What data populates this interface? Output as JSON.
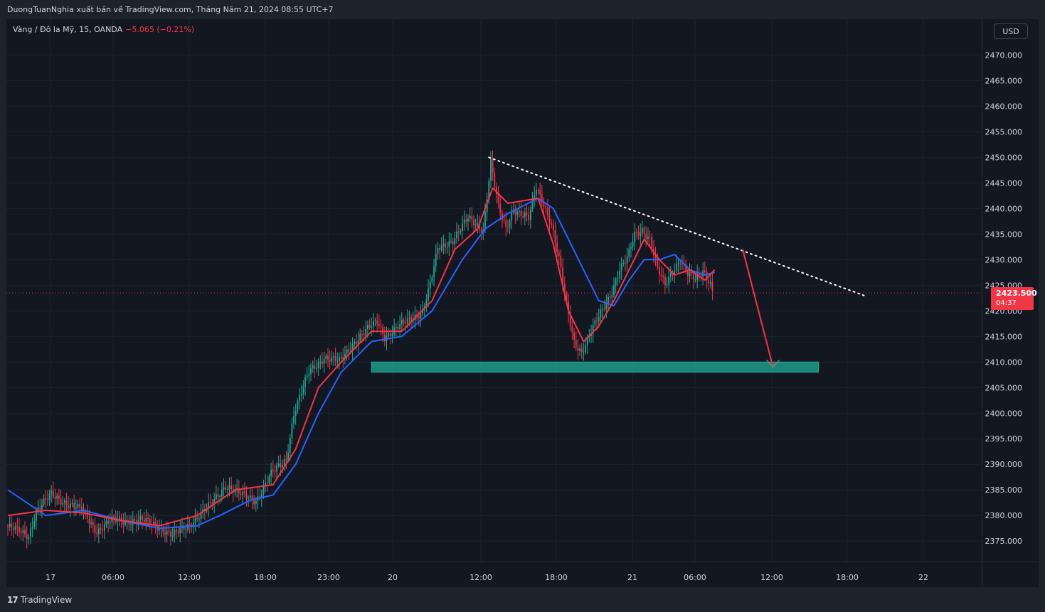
{
  "header": {
    "publish_line": "DuongTuanNghia xuất bản về TradingView.com, Tháng Năm 21, 2024 08:55 UTC+7"
  },
  "symbol": {
    "name": "Vàng / Đô la Mỹ, 15, OANDA",
    "change": "−5.065 (−0.21%)"
  },
  "currency_button": "USD",
  "last_price": {
    "price": "2423.500",
    "countdown": "04:37"
  },
  "footer": {
    "logo_icon": "tradingview-logo-icon",
    "brand": "TradingView"
  },
  "colors": {
    "background": "#131722",
    "grid": "#1f2330",
    "up": "#22ab94",
    "down": "#f23645",
    "ma_fast": "#f23645",
    "ma_slow": "#2962ff",
    "support_zone": "#1e9b87"
  },
  "chart_data": {
    "type": "candlestick",
    "title": "Vàng / Đô la Mỹ, 15, OANDA",
    "x_tick_labels": [
      "17",
      "06:00",
      "12:00",
      "18:00",
      "23:00",
      "20",
      "12:00",
      "18:00",
      "21",
      "06:00",
      "12:00",
      "18:00",
      "22"
    ],
    "y_tick_labels": [
      "2470.000",
      "2465.000",
      "2460.000",
      "2455.000",
      "2450.000",
      "2445.000",
      "2440.000",
      "2435.000",
      "2430.000",
      "2425.000",
      "2420.000",
      "2415.000",
      "2410.000",
      "2405.000",
      "2400.000",
      "2395.000",
      "2390.000",
      "2385.000",
      "2380.000",
      "2375.000"
    ],
    "ylim": [
      2371,
      2477
    ],
    "grid": true,
    "price_path": [
      [
        0,
        2378
      ],
      [
        3,
        2376
      ],
      [
        4,
        2381
      ],
      [
        6,
        2384
      ],
      [
        10,
        2381
      ],
      [
        12,
        2377
      ],
      [
        14,
        2379
      ],
      [
        18,
        2379
      ],
      [
        20,
        2378
      ],
      [
        22,
        2376
      ],
      [
        24,
        2378
      ],
      [
        27,
        2382
      ],
      [
        29,
        2386
      ],
      [
        31,
        2384
      ],
      [
        33,
        2383
      ],
      [
        35,
        2388
      ],
      [
        37,
        2391
      ],
      [
        38,
        2400
      ],
      [
        40,
        2408
      ],
      [
        42,
        2411
      ],
      [
        44,
        2410
      ],
      [
        46,
        2414
      ],
      [
        49,
        2418
      ],
      [
        50,
        2415
      ],
      [
        53,
        2418
      ],
      [
        55,
        2420
      ],
      [
        56,
        2425
      ],
      [
        57,
        2432
      ],
      [
        59,
        2434
      ],
      [
        61,
        2438
      ],
      [
        63,
        2436
      ],
      [
        64,
        2449
      ],
      [
        65,
        2440
      ],
      [
        66,
        2436
      ],
      [
        67,
        2440
      ],
      [
        69,
        2438
      ],
      [
        70,
        2444
      ],
      [
        71,
        2441
      ],
      [
        72,
        2437
      ],
      [
        73,
        2430
      ],
      [
        74,
        2421
      ],
      [
        75,
        2414
      ],
      [
        76,
        2412
      ],
      [
        77,
        2415
      ],
      [
        78,
        2418
      ],
      [
        79,
        2421
      ],
      [
        80,
        2424
      ],
      [
        81,
        2428
      ],
      [
        82,
        2430
      ],
      [
        83,
        2435
      ],
      [
        84,
        2436
      ],
      [
        85,
        2434
      ],
      [
        86,
        2428
      ],
      [
        87,
        2425
      ],
      [
        88,
        2428
      ],
      [
        89,
        2430
      ],
      [
        90,
        2427
      ],
      [
        91,
        2426
      ],
      [
        92,
        2428
      ],
      [
        93,
        2425.5
      ],
      [
        93.3,
        2423.5
      ]
    ],
    "ma_fast": [
      [
        0,
        2380
      ],
      [
        5,
        2381
      ],
      [
        10,
        2380.5
      ],
      [
        15,
        2379
      ],
      [
        20,
        2378
      ],
      [
        25,
        2380
      ],
      [
        30,
        2385
      ],
      [
        35,
        2386
      ],
      [
        38,
        2393
      ],
      [
        41,
        2405
      ],
      [
        44,
        2410
      ],
      [
        48,
        2416
      ],
      [
        52,
        2416
      ],
      [
        56,
        2422
      ],
      [
        59,
        2432
      ],
      [
        62,
        2436
      ],
      [
        64,
        2444
      ],
      [
        66,
        2441
      ],
      [
        70,
        2442
      ],
      [
        72,
        2433
      ],
      [
        74,
        2420
      ],
      [
        76,
        2414
      ],
      [
        78,
        2417
      ],
      [
        80,
        2422
      ],
      [
        82,
        2428
      ],
      [
        84,
        2434
      ],
      [
        86,
        2430
      ],
      [
        88,
        2427
      ],
      [
        90,
        2428
      ],
      [
        92,
        2426
      ],
      [
        93.3,
        2428
      ]
    ],
    "ma_slow": [
      [
        0,
        2385
      ],
      [
        5,
        2380
      ],
      [
        10,
        2381
      ],
      [
        15,
        2379
      ],
      [
        20,
        2377.5
      ],
      [
        25,
        2378
      ],
      [
        28,
        2380
      ],
      [
        32,
        2383
      ],
      [
        35,
        2384
      ],
      [
        38,
        2390
      ],
      [
        41,
        2400
      ],
      [
        44,
        2408
      ],
      [
        48,
        2414
      ],
      [
        52,
        2415
      ],
      [
        56,
        2420
      ],
      [
        60,
        2430
      ],
      [
        63,
        2436
      ],
      [
        66,
        2439
      ],
      [
        70,
        2442
      ],
      [
        72,
        2440
      ],
      [
        74,
        2434
      ],
      [
        76,
        2428
      ],
      [
        78,
        2422
      ],
      [
        80,
        2421
      ],
      [
        82,
        2426
      ],
      [
        84,
        2430
      ],
      [
        86,
        2430
      ],
      [
        88,
        2431
      ],
      [
        90,
        2428
      ],
      [
        92,
        2427
      ],
      [
        93.3,
        2427.5
      ]
    ],
    "annotations": {
      "trendline_dotted": [
        [
          63.5,
          2450
        ],
        [
          113,
          2423
        ]
      ],
      "last_price_line": 2423.5,
      "support_zone": {
        "x": [
          48,
          107
        ],
        "y": [
          2408,
          2410
        ]
      },
      "projection_arrow": [
        [
          97,
          2432
        ],
        [
          101,
          2409
        ]
      ]
    }
  }
}
